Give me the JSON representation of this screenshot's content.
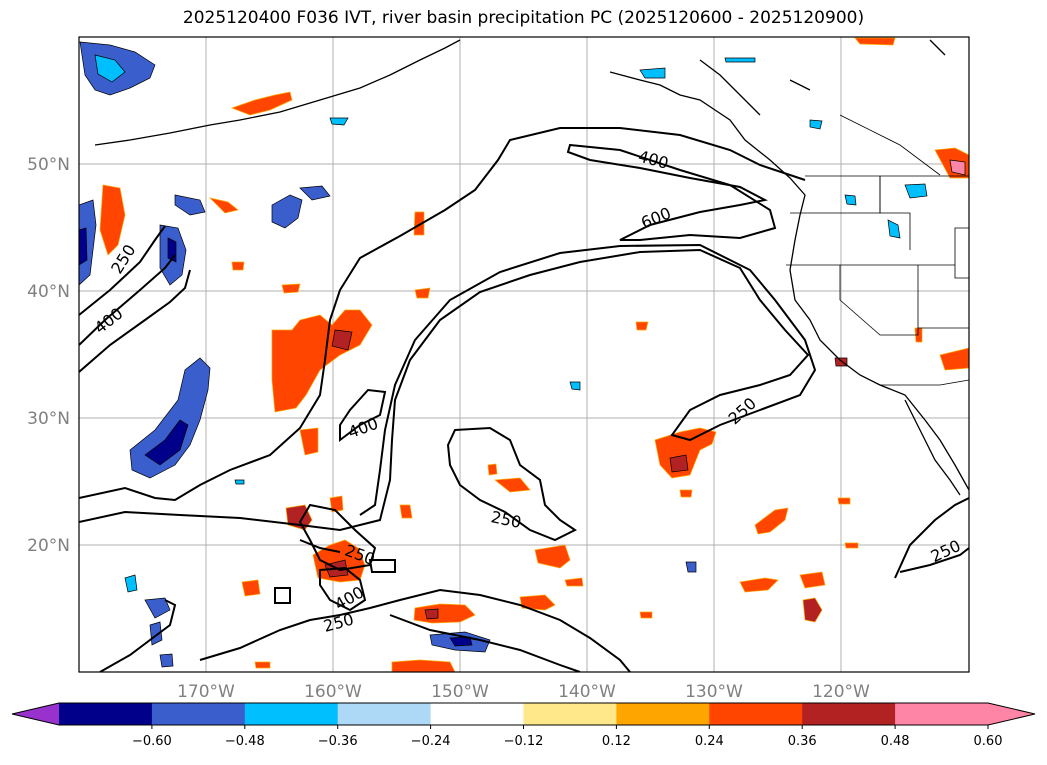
{
  "title": "2025120400 F036 IVT, river basin precipitation PC (2025120600 - 2025120900)",
  "map": {
    "lon_ticks": [
      "170°W",
      "160°W",
      "150°W",
      "140°W",
      "130°W",
      "120°W"
    ],
    "lat_ticks": [
      "50°N",
      "40°N",
      "30°N",
      "20°N"
    ],
    "grid": true,
    "contour_labels": [
      "250",
      "400",
      "400",
      "600",
      "400",
      "250",
      "250",
      "250",
      "400",
      "250",
      "250"
    ]
  },
  "colorbar": {
    "orientation": "horizontal",
    "extend": "both",
    "colors": [
      "#9932cc",
      "#00008b",
      "#3a5fcd",
      "#00bfff",
      "#add8f6",
      "#ffffff",
      "#ffe88a",
      "#ffa500",
      "#ff4500",
      "#b22222",
      "#ff85a6",
      "#ff85a6"
    ],
    "tick_labels": [
      "−0.60",
      "−0.48",
      "−0.36",
      "−0.24",
      "−0.12",
      "0.12",
      "0.24",
      "0.36",
      "0.48",
      "0.60"
    ]
  }
}
